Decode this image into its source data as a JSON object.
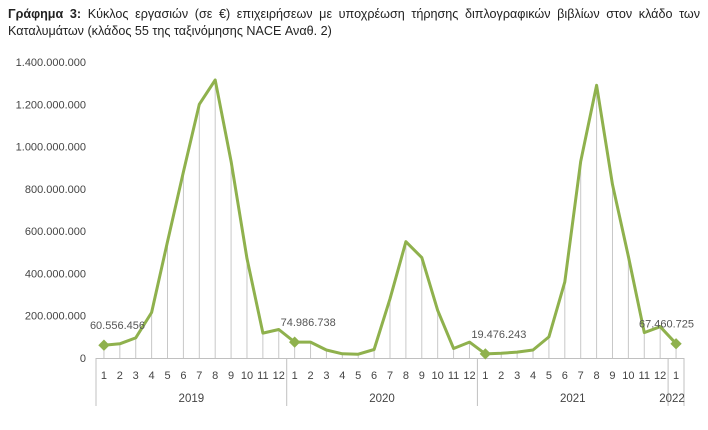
{
  "caption": {
    "label": "Γράφημα 3:",
    "text": "Κύκλος εργασιών (σε €) επιχειρήσεων με υποχρέωση τήρησης διπλογραφικών βιβλίων στον κλάδο των Καταλυμάτων (κλάδος 55 της ταξινόμησης NACE Αναθ. 2)"
  },
  "chart_data": {
    "type": "line",
    "title": "",
    "xlabel": "",
    "ylabel": "",
    "ylim": [
      0,
      1400000000
    ],
    "y_ticks": [
      0,
      200000000,
      400000000,
      600000000,
      800000000,
      1000000000,
      1200000000,
      1400000000
    ],
    "y_tick_labels": [
      "0",
      "200.000.000",
      "400.000.000",
      "600.000.000",
      "800.000.000",
      "1.000.000.000",
      "1.200.000.000",
      "1.400.000.000"
    ],
    "grid": "vertical drop lines",
    "legend": "none",
    "color": "#8fb14d",
    "categories": [
      "1",
      "2",
      "3",
      "4",
      "5",
      "6",
      "7",
      "8",
      "9",
      "10",
      "11",
      "12",
      "1",
      "2",
      "3",
      "4",
      "5",
      "6",
      "7",
      "8",
      "9",
      "10",
      "11",
      "12",
      "1",
      "2",
      "3",
      "4",
      "5",
      "6",
      "7",
      "8",
      "9",
      "10",
      "11",
      "12",
      "1"
    ],
    "year_groups": [
      {
        "label": "2019",
        "count": 12
      },
      {
        "label": "2020",
        "count": 12
      },
      {
        "label": "2021",
        "count": 12
      },
      {
        "label": "2022",
        "count": 1
      }
    ],
    "series": [
      {
        "values": [
          60556456,
          67000000,
          95000000,
          215000000,
          550000000,
          880000000,
          1200000000,
          1315000000,
          930000000,
          470000000,
          118000000,
          135000000,
          74986738,
          75000000,
          38000000,
          20000000,
          18000000,
          40000000,
          280000000,
          550000000,
          475000000,
          225000000,
          45000000,
          75000000,
          19476243,
          22000000,
          28000000,
          38000000,
          100000000,
          360000000,
          930000000,
          1290000000,
          820000000,
          480000000,
          120000000,
          148000000,
          67460725
        ]
      }
    ],
    "data_labels": [
      {
        "index": 0,
        "text": "60.556.456"
      },
      {
        "index": 12,
        "text": "74.986.738"
      },
      {
        "index": 24,
        "text": "19.476.243"
      },
      {
        "index": 36,
        "text": "67.460.725"
      }
    ]
  }
}
